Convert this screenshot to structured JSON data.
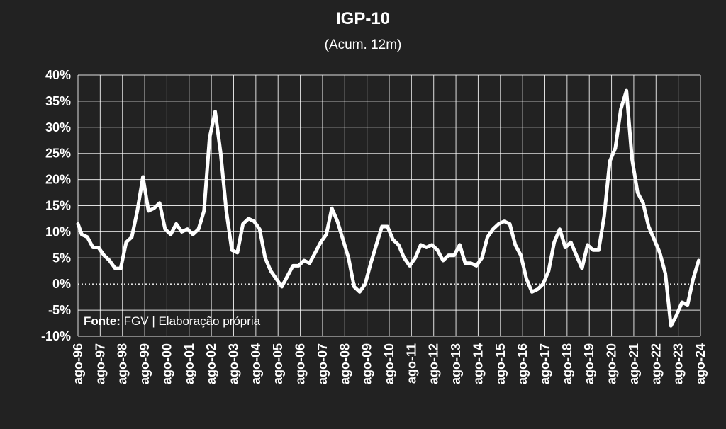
{
  "chart_data": {
    "type": "line",
    "title": "IGP-10",
    "subtitle": "(Acum. 12m)",
    "source_label": "Fonte:",
    "source_text": " FGV | Elaboração própria",
    "ylim": [
      -10,
      40
    ],
    "y_ticks": [
      "40%",
      "35%",
      "30%",
      "25%",
      "20%",
      "15%",
      "10%",
      "5%",
      "0%",
      "-5%",
      "-10%"
    ],
    "x_ticks": [
      "ago-96",
      "ago-97",
      "ago-98",
      "ago-99",
      "ago-00",
      "ago-01",
      "ago-02",
      "ago-03",
      "ago-04",
      "ago-05",
      "ago-06",
      "ago-07",
      "ago-08",
      "ago-09",
      "ago-10",
      "ago-11",
      "ago-12",
      "ago-13",
      "ago-14",
      "ago-15",
      "ago-16",
      "ago-17",
      "ago-18",
      "ago-19",
      "ago-20",
      "ago-21",
      "ago-22",
      "ago-23",
      "ago-24"
    ],
    "grid": true,
    "zero_line": "dotted",
    "colors": {
      "background": "#222222",
      "line": "#ffffff",
      "grid": "#ffffff"
    },
    "series": [
      {
        "x": [
          1996.58,
          1996.75,
          1997.0,
          1997.25,
          1997.5,
          1997.75,
          1998.0,
          1998.25,
          1998.5,
          1998.75,
          1999.0,
          1999.25,
          1999.5,
          1999.75,
          2000.0,
          2000.25,
          2000.5,
          2000.75,
          2001.0,
          2001.25,
          2001.5,
          2001.75,
          2002.0,
          2002.25,
          2002.5,
          2002.75,
          2003.0,
          2003.25,
          2003.5,
          2003.75,
          2004.0,
          2004.25,
          2004.5,
          2004.75,
          2005.0,
          2005.25,
          2005.5,
          2005.75,
          2006.0,
          2006.25,
          2006.5,
          2006.75,
          2007.0,
          2007.25,
          2007.5,
          2007.75,
          2008.0,
          2008.25,
          2008.5,
          2008.75,
          2009.0,
          2009.25,
          2009.5,
          2009.75,
          2010.0,
          2010.25,
          2010.5,
          2010.75,
          2011.0,
          2011.25,
          2011.5,
          2011.75,
          2012.0,
          2012.25,
          2012.5,
          2012.75,
          2013.0,
          2013.25,
          2013.5,
          2013.75,
          2014.0,
          2014.25,
          2014.5,
          2014.75,
          2015.0,
          2015.25,
          2015.5,
          2015.75,
          2016.0,
          2016.25,
          2016.5,
          2016.75,
          2017.0,
          2017.25,
          2017.5,
          2017.75,
          2018.0,
          2018.25,
          2018.5,
          2018.75,
          2019.0,
          2019.25,
          2019.5,
          2019.75,
          2020.0,
          2020.25,
          2020.5,
          2020.75,
          2021.0,
          2021.25,
          2021.5,
          2021.75,
          2022.0,
          2022.25,
          2022.5,
          2022.75,
          2023.0,
          2023.25,
          2023.5,
          2023.75,
          2024.0,
          2024.25,
          2024.5
        ],
        "values": [
          11.5,
          9.5,
          9.0,
          7.0,
          7.0,
          5.5,
          4.5,
          3.0,
          3.0,
          8.0,
          9.0,
          14.0,
          20.5,
          14.0,
          14.5,
          15.5,
          10.5,
          9.5,
          11.5,
          10.0,
          10.5,
          9.5,
          10.5,
          14.0,
          28.0,
          33.0,
          25.0,
          14.0,
          6.5,
          6.0,
          11.5,
          12.5,
          12.0,
          10.5,
          5.0,
          2.5,
          1.0,
          -0.5,
          1.5,
          3.5,
          3.5,
          4.5,
          4.0,
          6.0,
          8.0,
          9.5,
          14.5,
          12.0,
          8.5,
          5.0,
          -0.5,
          -1.5,
          0.0,
          4.0,
          7.5,
          11.0,
          11.0,
          8.5,
          7.5,
          5.0,
          3.5,
          5.0,
          7.5,
          7.0,
          7.5,
          6.5,
          4.5,
          5.5,
          5.5,
          7.5,
          4.0,
          4.0,
          3.5,
          5.0,
          9.0,
          10.5,
          11.5,
          12.0,
          11.5,
          7.5,
          5.5,
          1.0,
          -1.5,
          -1.0,
          0.0,
          2.5,
          8.0,
          10.5,
          7.0,
          8.0,
          5.5,
          3.0,
          7.5,
          6.5,
          6.5,
          13.0,
          23.5,
          26.0,
          33.5,
          37.0,
          24.0,
          17.5,
          15.5,
          11.0,
          8.5,
          6.0,
          2.0,
          -8.0,
          -6.0,
          -3.5,
          -4.0,
          1.0,
          4.5
        ]
      }
    ]
  }
}
